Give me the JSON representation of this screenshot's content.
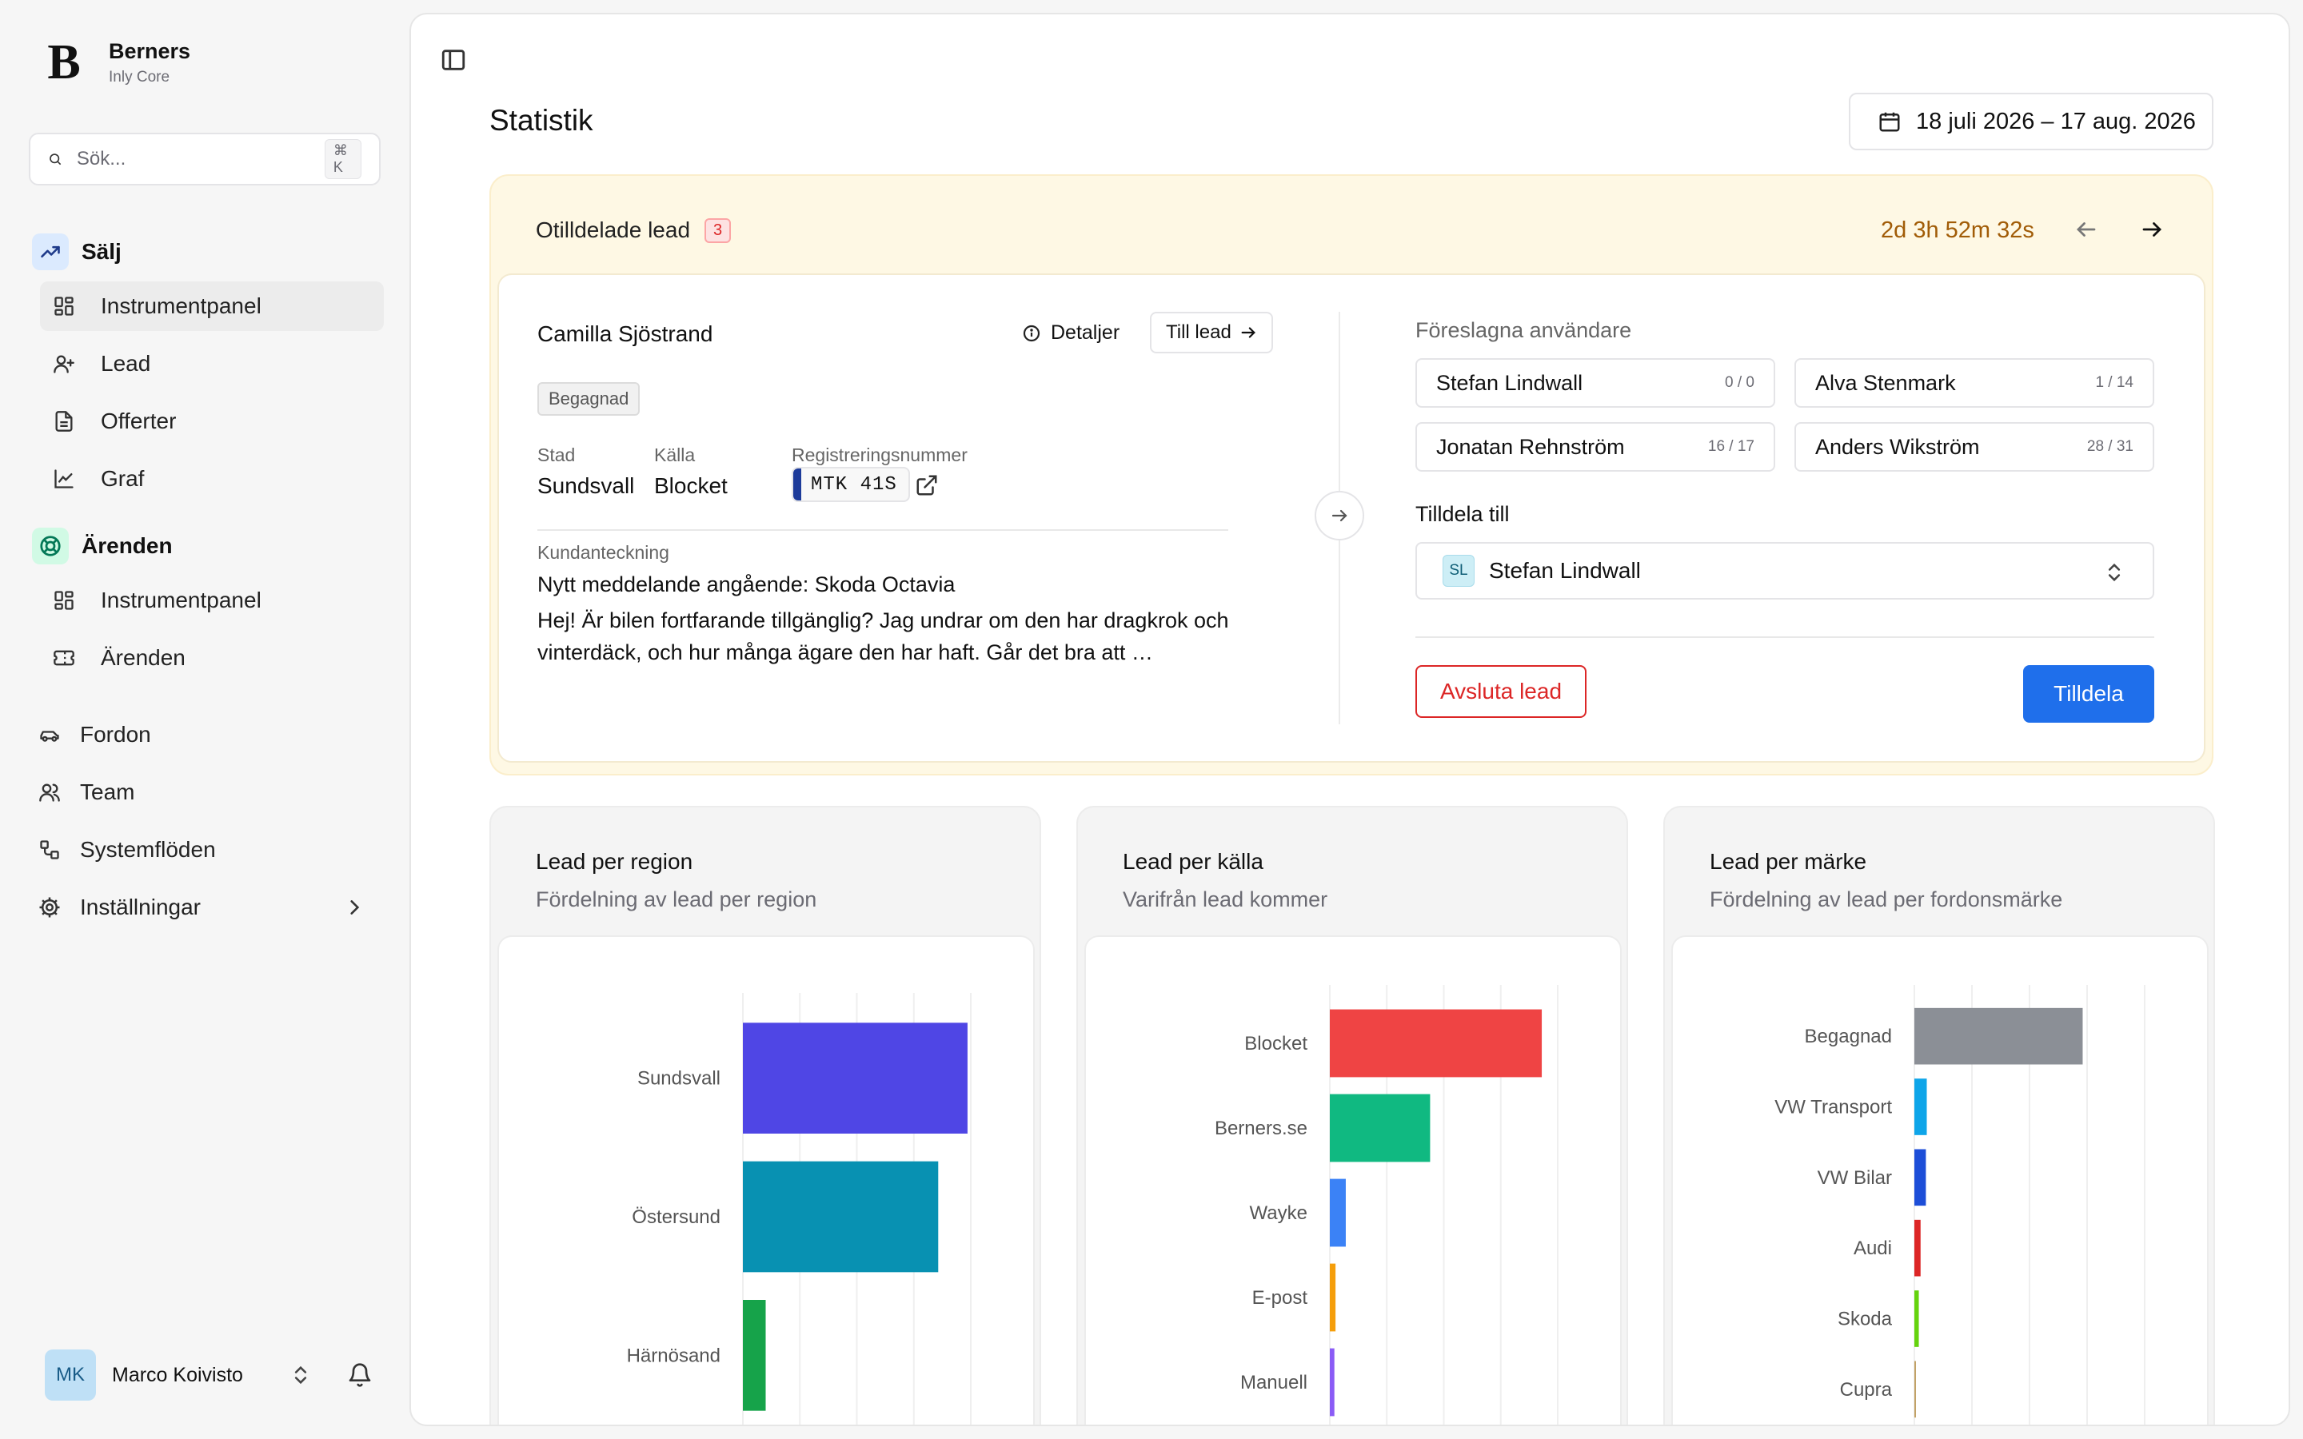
{
  "brand": {
    "name": "Berners",
    "sub": "Inly Core",
    "logo_letter": "B"
  },
  "search": {
    "placeholder": "Sök...",
    "shortcut": "⌘ K"
  },
  "sidebar": {
    "groups": [
      {
        "label": "Sälj",
        "icon": "trending-up-icon",
        "color": "#dbeafe",
        "items": [
          {
            "label": "Instrumentpanel",
            "icon": "dashboard-icon",
            "active": true
          },
          {
            "label": "Lead",
            "icon": "user-plus-icon"
          },
          {
            "label": "Offerter",
            "icon": "document-icon"
          },
          {
            "label": "Graf",
            "icon": "line-chart-icon"
          }
        ]
      },
      {
        "label": "Ärenden",
        "icon": "lifebuoy-icon",
        "color": "#d1fae5",
        "items": [
          {
            "label": "Instrumentpanel",
            "icon": "dashboard-icon"
          },
          {
            "label": "Ärenden",
            "icon": "ticket-icon"
          }
        ]
      }
    ],
    "top_items": [
      {
        "label": "Fordon",
        "icon": "car-icon"
      },
      {
        "label": "Team",
        "icon": "users-icon"
      },
      {
        "label": "Systemflöden",
        "icon": "workflow-icon"
      },
      {
        "label": "Inställningar",
        "icon": "gear-icon"
      }
    ]
  },
  "user": {
    "initials": "MK",
    "name": "Marco Koivisto"
  },
  "header": {
    "title": "Statistik",
    "date_range": "18 juli 2026 – 17 aug. 2026"
  },
  "lead_card": {
    "title": "Otilldelade lead",
    "count": "3",
    "timer": "2d 3h 52m 32s",
    "customer": "Camilla Sjöstrand",
    "details_label": "Detaljer",
    "to_lead_label": "Till lead",
    "tag": "Begagnad",
    "fields": {
      "city_label": "Stad",
      "city": "Sundsvall",
      "source_label": "Källa",
      "source": "Blocket",
      "reg_label": "Registreringsnummer",
      "reg": "MTK 41S"
    },
    "note_label": "Kundanteckning",
    "note_title": "Nytt meddelande angående: Skoda Octavia",
    "note_body": "Hej! Är bilen fortfarande tillgänglig? Jag undrar om den har dragkrok och vinterdäck, och hur många ägare den har haft. Går det bra att …",
    "suggested_label": "Föreslagna användare",
    "suggested_users": [
      {
        "name": "Stefan Lindwall",
        "count": "0 / 0"
      },
      {
        "name": "Alva Stenmark",
        "count": "1 / 14"
      },
      {
        "name": "Jonatan Rehnström",
        "count": "16 / 17"
      },
      {
        "name": "Anders Wikström",
        "count": "28 / 31"
      }
    ],
    "assign_label": "Tilldela till",
    "assign_initials": "SL",
    "assign_selected": "Stefan Lindwall",
    "end_label": "Avsluta lead",
    "assign_button": "Tilldela"
  },
  "chart_data": [
    {
      "type": "bar",
      "orientation": "horizontal",
      "title": "Lead per region",
      "subtitle": "Fördelning av lead per region",
      "categories": [
        "Sundsvall",
        "Östersund",
        "Härnösand"
      ],
      "values": [
        138,
        120,
        14
      ],
      "colors": [
        "#4f46e5",
        "#0891b2",
        "#16a34a"
      ],
      "xticks": [
        0,
        35,
        70,
        105,
        140
      ],
      "xlim": [
        0,
        140
      ],
      "grid": true
    },
    {
      "type": "bar",
      "orientation": "horizontal",
      "title": "Lead per källa",
      "subtitle": "Varifrån lead kommer",
      "categories": [
        "Blocket",
        "Berners.se",
        "Wayke",
        "E-post",
        "Manuell"
      ],
      "values": [
        186,
        88,
        14,
        5,
        4
      ],
      "colors": [
        "#ef4444",
        "#10b981",
        "#3b82f6",
        "#f59e0b",
        "#8b5cf6"
      ],
      "xticks": [
        0,
        50,
        100,
        150,
        200
      ],
      "xlim": [
        0,
        200
      ],
      "grid": true
    },
    {
      "type": "bar",
      "orientation": "horizontal",
      "title": "Lead per märke",
      "subtitle": "Fördelning av lead per fordonsmärke",
      "categories": [
        "Begagnad",
        "VW Transport",
        "VW Bilar",
        "Audi",
        "Skoda",
        "Cupra"
      ],
      "values": [
        190,
        14,
        13,
        7,
        5,
        1
      ],
      "colors": [
        "#8b8f96",
        "#0ea5e9",
        "#1d4ed8",
        "#dc2626",
        "#65d30d",
        "#c2a267"
      ],
      "xticks": [
        0,
        65,
        130,
        195,
        260
      ],
      "xlim": [
        0,
        260
      ],
      "grid": true
    }
  ]
}
